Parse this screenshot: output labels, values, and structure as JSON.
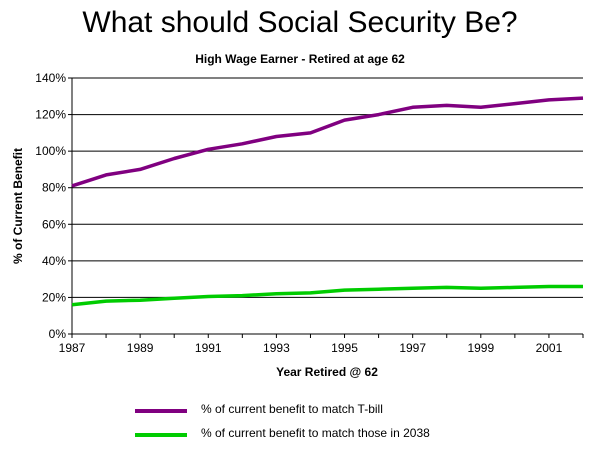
{
  "chart_data": {
    "type": "line",
    "title": "What should Social Security Be?",
    "subtitle": "High Wage Earner - Retired at age 62",
    "xlabel": "Year Retired @ 62",
    "ylabel": "% of Current Benefit",
    "x": [
      1987,
      1988,
      1989,
      1990,
      1991,
      1992,
      1993,
      1994,
      1995,
      1996,
      1997,
      1998,
      1999,
      2000,
      2001,
      2002
    ],
    "xlim": [
      1987,
      2002
    ],
    "x_ticks": [
      "1987",
      "1989",
      "1991",
      "1993",
      "1995",
      "1997",
      "1999",
      "2001"
    ],
    "ylim": [
      0,
      140
    ],
    "y_ticks": [
      "0%",
      "20%",
      "40%",
      "60%",
      "80%",
      "100%",
      "120%",
      "140%"
    ],
    "grid": "horizontal",
    "legend_position": "bottom",
    "series": [
      {
        "name": "% of current benefit to match T-bill",
        "color": "#800080",
        "values": [
          81,
          87,
          90,
          96,
          101,
          104,
          108,
          110,
          117,
          120,
          124,
          125,
          124,
          126,
          128,
          129
        ]
      },
      {
        "name": "% of current benefit to match those in 2038",
        "color": "#00cc00",
        "values": [
          16,
          18,
          18.5,
          19.5,
          20.5,
          21,
          22,
          22.5,
          24,
          24.5,
          25,
          25.5,
          25,
          25.5,
          26,
          26
        ]
      }
    ]
  }
}
